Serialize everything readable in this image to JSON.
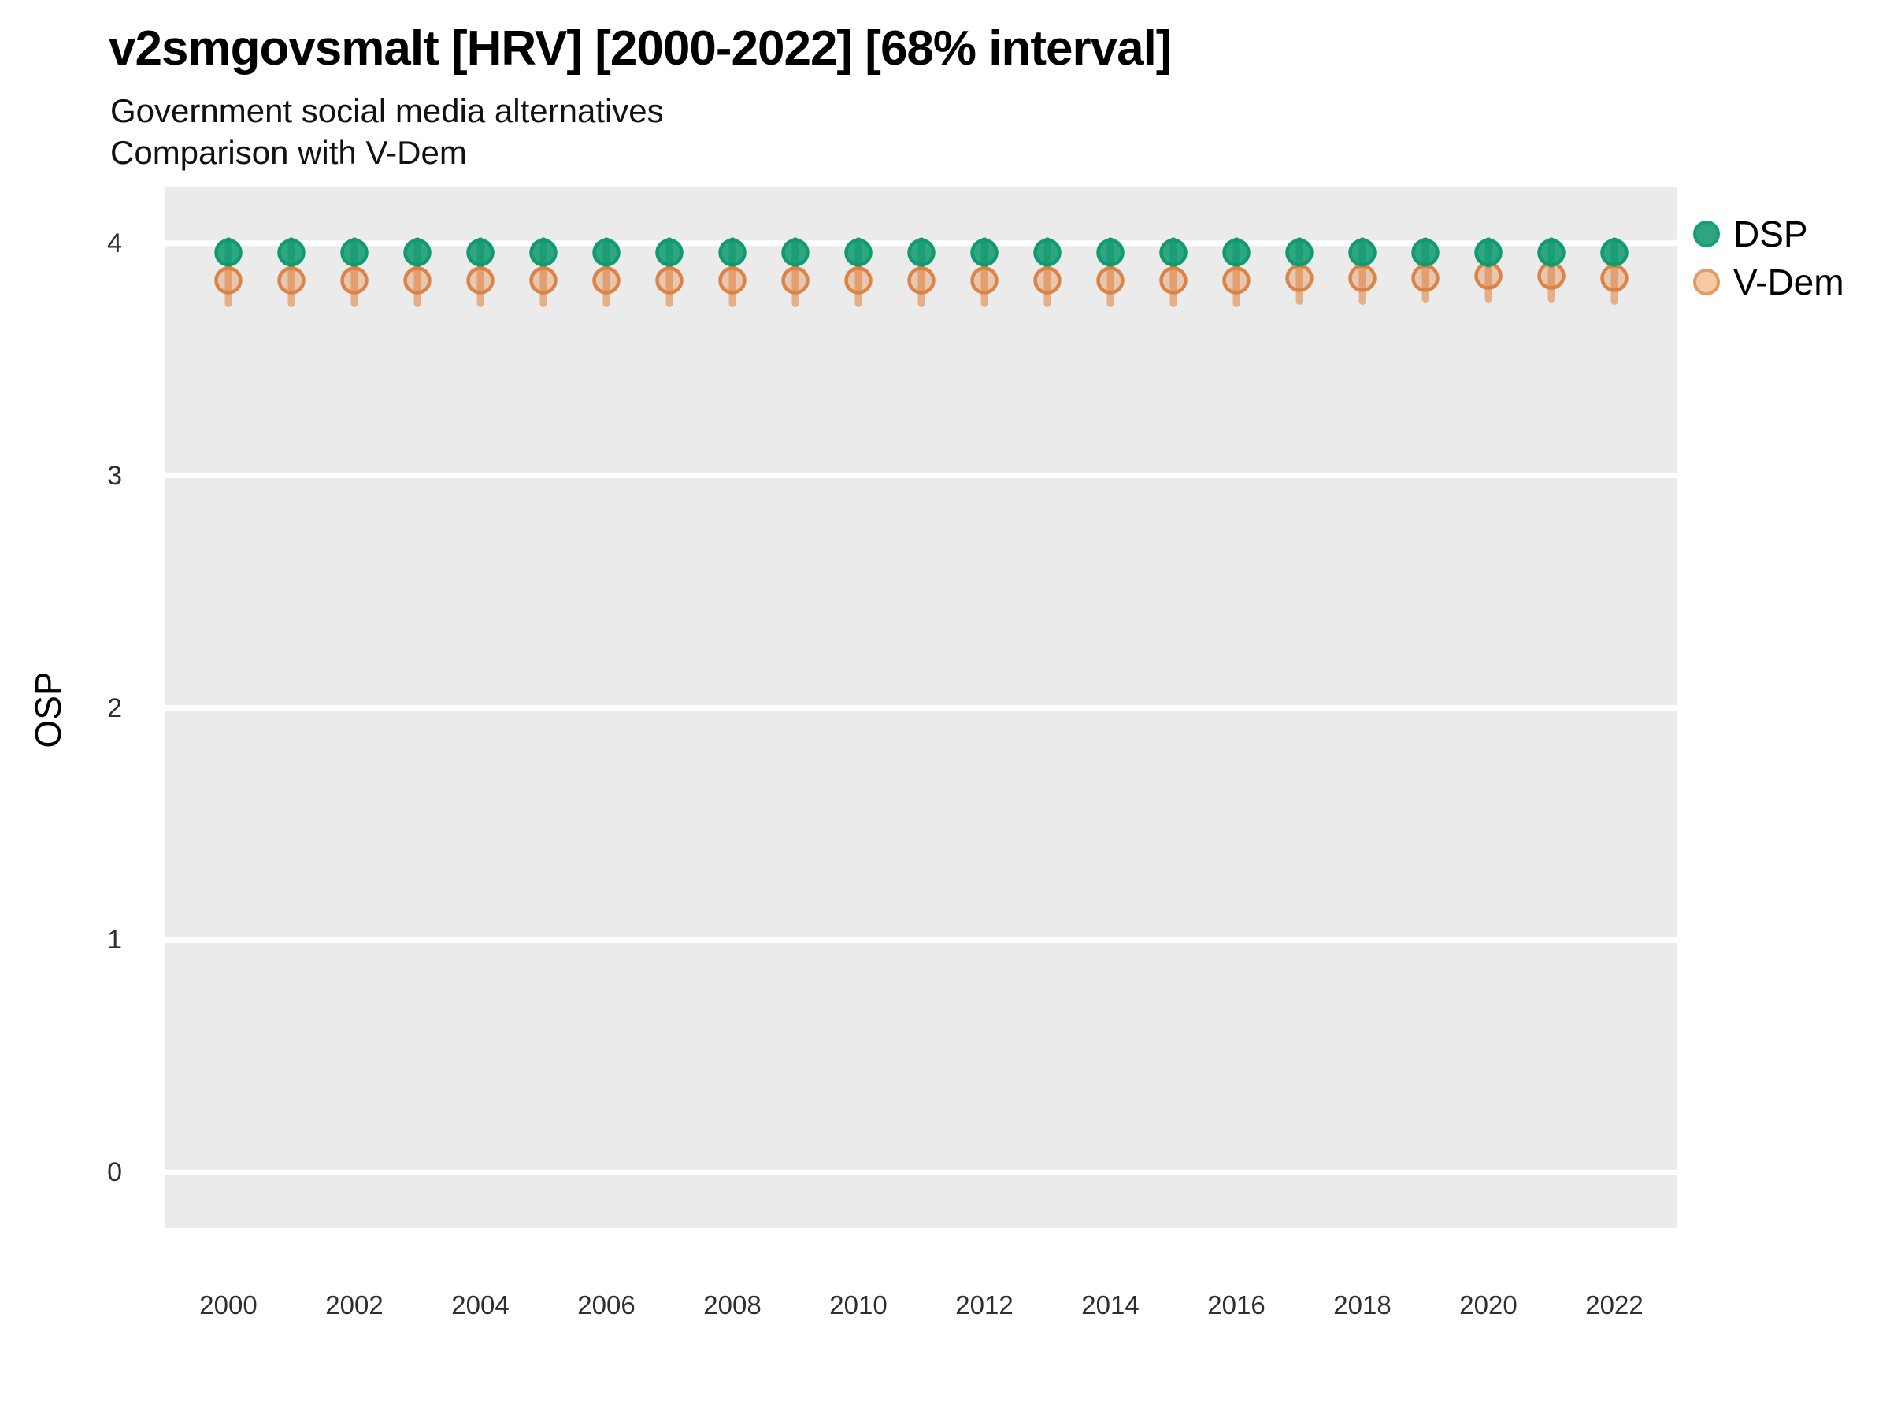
{
  "title": "v2smgovsmalt [HRV] [2000-2022] [68% interval]",
  "subtitle1": "Government social media alternatives",
  "subtitle2": "Comparison with V-Dem",
  "y_axis": {
    "title": "OSP",
    "ticks": [
      4,
      3,
      2,
      1,
      0
    ]
  },
  "x_axis": {
    "ticks": [
      2000,
      2002,
      2004,
      2006,
      2008,
      2010,
      2012,
      2014,
      2016,
      2018,
      2020,
      2022
    ]
  },
  "legend": {
    "items": [
      {
        "id": "dsp",
        "label": "DSP"
      },
      {
        "id": "vdem",
        "label": "V-Dem"
      }
    ]
  },
  "colors": {
    "panel_bg": "#EBEBEB",
    "grid": "#FFFFFF",
    "dsp_fill": "rgba(27,158,119,0.9)",
    "dsp_stroke": "#129A6F",
    "dsp_bar": "rgba(16,140,100,0.9)",
    "vdem_fill": "rgba(224,126,58,0.33)",
    "vdem_stroke": "rgba(218,128,64,0.95)",
    "vdem_bar": "rgba(224,126,58,0.55)",
    "legend_dsp_fill": "#2DA57F",
    "legend_dsp_stroke": "#17A076",
    "legend_vdem_fill": "#F4C9A4",
    "legend_vdem_stroke": "#E39A63"
  },
  "chart_data": {
    "type": "pointrange-scatter",
    "title": "v2smgovsmalt [HRV] [2000-2022] [68% interval]",
    "subtitle": [
      "Government social media alternatives",
      "Comparison with V-Dem"
    ],
    "xlabel": "",
    "ylabel": "OSP",
    "interval": "68%",
    "xlim": [
      1999,
      2023
    ],
    "ylim": [
      -0.24,
      4.24
    ],
    "grid": "horizontal-major-only",
    "legend_position": "right-top",
    "x": [
      2000,
      2001,
      2002,
      2003,
      2004,
      2005,
      2006,
      2007,
      2008,
      2009,
      2010,
      2011,
      2012,
      2013,
      2014,
      2015,
      2016,
      2017,
      2018,
      2019,
      2020,
      2021,
      2022
    ],
    "series": [
      {
        "name": "DSP",
        "est": [
          3.96,
          3.96,
          3.96,
          3.96,
          3.96,
          3.96,
          3.96,
          3.96,
          3.96,
          3.96,
          3.96,
          3.96,
          3.96,
          3.96,
          3.96,
          3.96,
          3.96,
          3.96,
          3.96,
          3.96,
          3.96,
          3.96,
          3.96
        ],
        "lo": [
          3.91,
          3.91,
          3.91,
          3.91,
          3.91,
          3.91,
          3.91,
          3.91,
          3.91,
          3.91,
          3.91,
          3.91,
          3.91,
          3.91,
          3.91,
          3.91,
          3.91,
          3.91,
          3.91,
          3.91,
          3.91,
          3.91,
          3.91
        ],
        "hi": [
          4.01,
          4.01,
          4.01,
          4.01,
          4.01,
          4.01,
          4.01,
          4.01,
          4.01,
          4.01,
          4.01,
          4.01,
          4.01,
          4.01,
          4.01,
          4.01,
          4.01,
          4.01,
          4.01,
          4.01,
          4.01,
          4.01,
          4.01
        ]
      },
      {
        "name": "V-Dem",
        "est": [
          3.84,
          3.84,
          3.84,
          3.84,
          3.84,
          3.84,
          3.84,
          3.84,
          3.84,
          3.84,
          3.84,
          3.84,
          3.84,
          3.84,
          3.84,
          3.84,
          3.84,
          3.85,
          3.85,
          3.85,
          3.86,
          3.86,
          3.85
        ],
        "lo": [
          3.74,
          3.74,
          3.74,
          3.74,
          3.74,
          3.74,
          3.74,
          3.74,
          3.74,
          3.74,
          3.74,
          3.74,
          3.74,
          3.74,
          3.74,
          3.74,
          3.74,
          3.75,
          3.75,
          3.76,
          3.76,
          3.76,
          3.75
        ],
        "hi": [
          3.91,
          3.91,
          3.91,
          3.91,
          3.91,
          3.91,
          3.91,
          3.91,
          3.91,
          3.91,
          3.91,
          3.91,
          3.91,
          3.91,
          3.91,
          3.91,
          3.91,
          3.92,
          3.92,
          3.92,
          3.93,
          3.93,
          3.92
        ]
      }
    ]
  }
}
